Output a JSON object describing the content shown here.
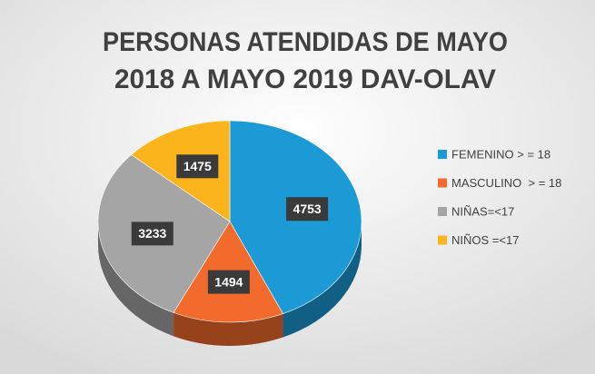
{
  "chart_data": {
    "type": "pie",
    "title": [
      "PERSONAS ATENDIDAS DE MAYO",
      "2018 A MAYO 2019 DAV-OLAV"
    ],
    "categories": [
      "FEMENINO > = 18",
      "MASCULINO  > = 18",
      "NIÑAS=<17",
      "NIÑOS =<17"
    ],
    "values": [
      4753,
      1494,
      3233,
      1475
    ],
    "colors": [
      "#1b9ad6",
      "#f26b2c",
      "#a5a5a5",
      "#fbb41c"
    ],
    "legend": "right"
  }
}
